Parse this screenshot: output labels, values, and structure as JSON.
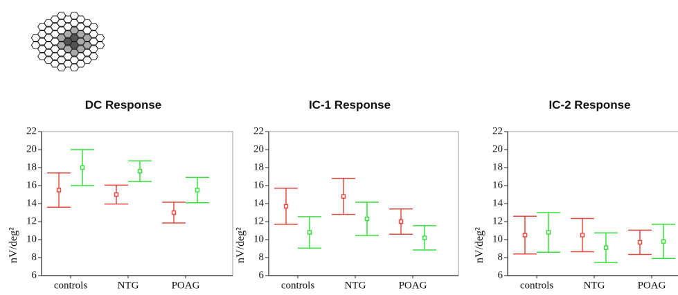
{
  "chart_data": [
    {
      "type": "errorbar",
      "title": "DC Response",
      "y_label": "nV/deg²",
      "categories": [
        "controls",
        "NTG",
        "POAG"
      ],
      "series": [
        {
          "color": "#e8483e",
          "values": [
            15.5,
            15.0,
            13.0
          ],
          "errors": [
            1.9,
            1.05,
            1.15
          ]
        },
        {
          "color": "#39e03a",
          "values": [
            18.0,
            17.6,
            15.5
          ],
          "errors": [
            2.0,
            1.15,
            1.4
          ]
        }
      ],
      "ylim": [
        6,
        22
      ],
      "yticks": [
        6,
        8,
        10,
        12,
        14,
        16,
        18,
        20,
        22
      ]
    },
    {
      "type": "errorbar",
      "title": "IC-1 Response",
      "y_label": "nV/deg²",
      "categories": [
        "controls",
        "NTG",
        "POAG"
      ],
      "series": [
        {
          "color": "#e8483e",
          "values": [
            13.7,
            14.8,
            12.0
          ],
          "errors": [
            2.0,
            2.0,
            1.4
          ]
        },
        {
          "color": "#39e03a",
          "values": [
            10.8,
            12.3,
            10.2
          ],
          "errors": [
            1.75,
            1.85,
            1.35
          ]
        }
      ],
      "ylim": [
        6,
        22
      ],
      "yticks": [
        6,
        8,
        10,
        12,
        14,
        16,
        18,
        20,
        22
      ]
    },
    {
      "type": "errorbar",
      "title": "IC-2 Response",
      "y_label": "nV/deg²",
      "categories": [
        "controls",
        "NTG",
        "POAG"
      ],
      "series": [
        {
          "color": "#e8483e",
          "values": [
            10.5,
            10.5,
            9.7
          ],
          "errors": [
            2.1,
            1.85,
            1.35
          ]
        },
        {
          "color": "#39e03a",
          "values": [
            10.8,
            9.1,
            9.8
          ],
          "errors": [
            2.2,
            1.65,
            1.9
          ]
        }
      ],
      "ylim": [
        6,
        22
      ],
      "yticks": [
        6,
        8,
        10,
        12,
        14,
        16,
        18,
        20,
        22
      ]
    }
  ]
}
